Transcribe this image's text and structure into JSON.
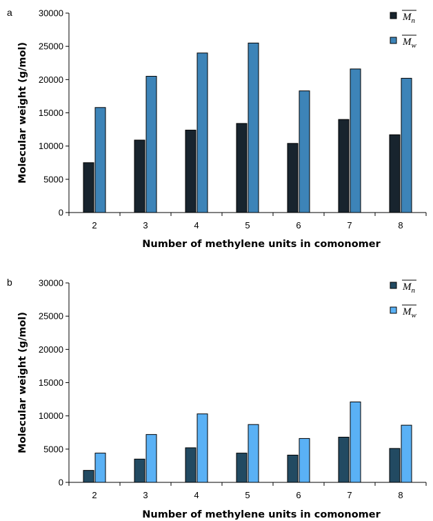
{
  "chart_data": [
    {
      "type": "bar",
      "panel_label": "a",
      "categories": [
        "2",
        "3",
        "4",
        "5",
        "6",
        "7",
        "8"
      ],
      "series": [
        {
          "name": "Mn",
          "color": "#18242e",
          "values": [
            7500,
            10900,
            12400,
            13400,
            10400,
            14000,
            11700
          ]
        },
        {
          "name": "Mw",
          "color": "#3d84b8",
          "values": [
            15800,
            20500,
            24000,
            25500,
            18300,
            21600,
            20200
          ]
        }
      ],
      "xlabel": "Number of methylene units in comonomer",
      "ylabel": "Molecular weight (g/mol)",
      "ylim": [
        0,
        30000
      ],
      "yticks": [
        "0",
        "5000",
        "10000",
        "15000",
        "20000",
        "25000",
        "30000"
      ],
      "grid": false,
      "legend_position": "top-right"
    },
    {
      "type": "bar",
      "panel_label": "b",
      "categories": [
        "2",
        "3",
        "4",
        "5",
        "6",
        "7",
        "8"
      ],
      "series": [
        {
          "name": "Mn",
          "color": "#224a62",
          "values": [
            1800,
            3500,
            5200,
            4400,
            4100,
            6800,
            5100
          ]
        },
        {
          "name": "Mw",
          "color": "#5ab1f5",
          "values": [
            4400,
            7200,
            10300,
            8700,
            6600,
            12100,
            8600
          ]
        }
      ],
      "xlabel": "Number of methylene units in comonomer",
      "ylabel": "Molecular weight (g/mol)",
      "ylim": [
        0,
        30000
      ],
      "yticks": [
        "0",
        "5000",
        "10000",
        "15000",
        "20000",
        "25000",
        "30000"
      ],
      "grid": false,
      "legend_position": "top-right"
    }
  ]
}
